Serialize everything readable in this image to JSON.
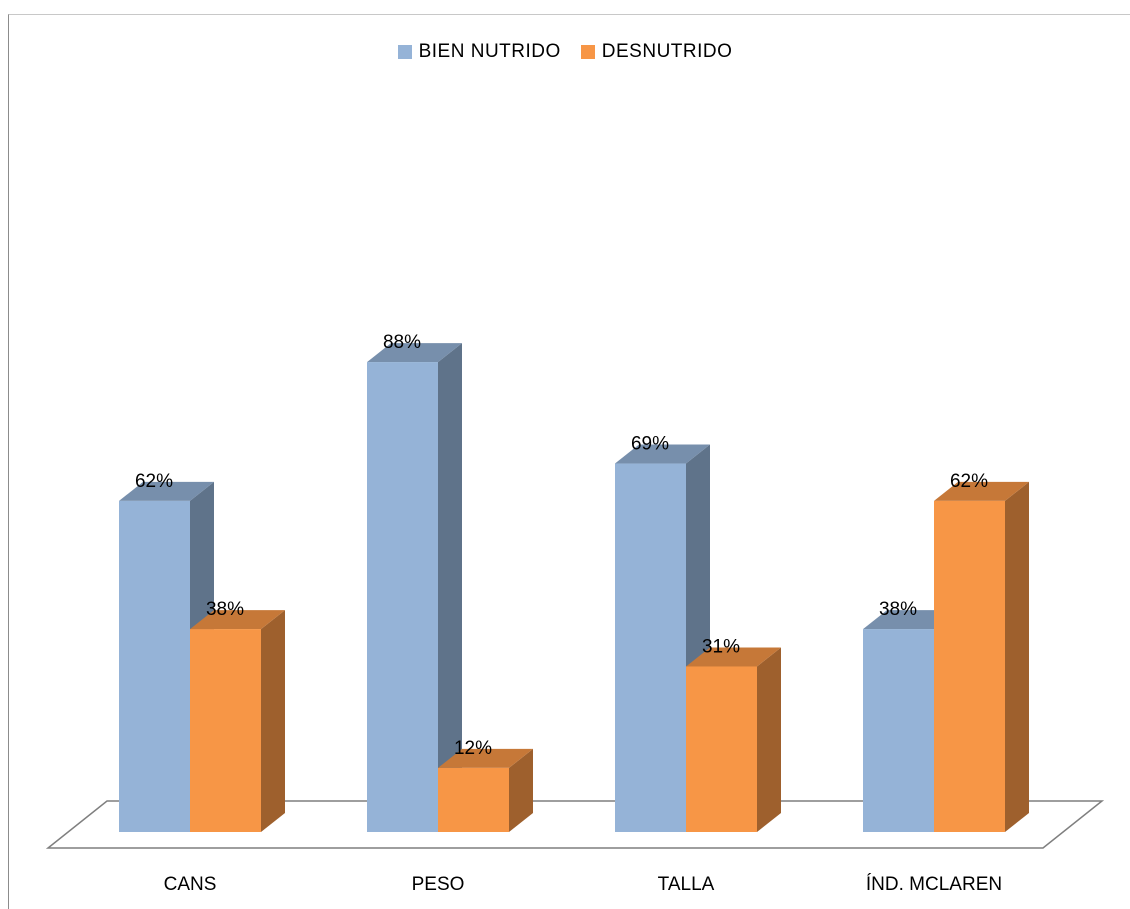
{
  "chart_data": {
    "type": "bar",
    "categories": [
      "CANS",
      "PESO",
      "TALLA",
      "ÍND. MCLAREN"
    ],
    "series": [
      {
        "name": "BIEN NUTRIDO",
        "values": [
          62,
          88,
          69,
          38
        ],
        "labels": [
          "62%",
          "88%",
          "69%",
          "38%"
        ],
        "color": "#95b3d7"
      },
      {
        "name": "DESNUTRIDO",
        "values": [
          38,
          12,
          31,
          62
        ],
        "labels": [
          "38%",
          "12%",
          "31%",
          "62%"
        ],
        "color": "#f79646"
      }
    ],
    "ylim": [
      0,
      100
    ],
    "legend_position": "top",
    "grid": false,
    "style": "3d-column"
  }
}
